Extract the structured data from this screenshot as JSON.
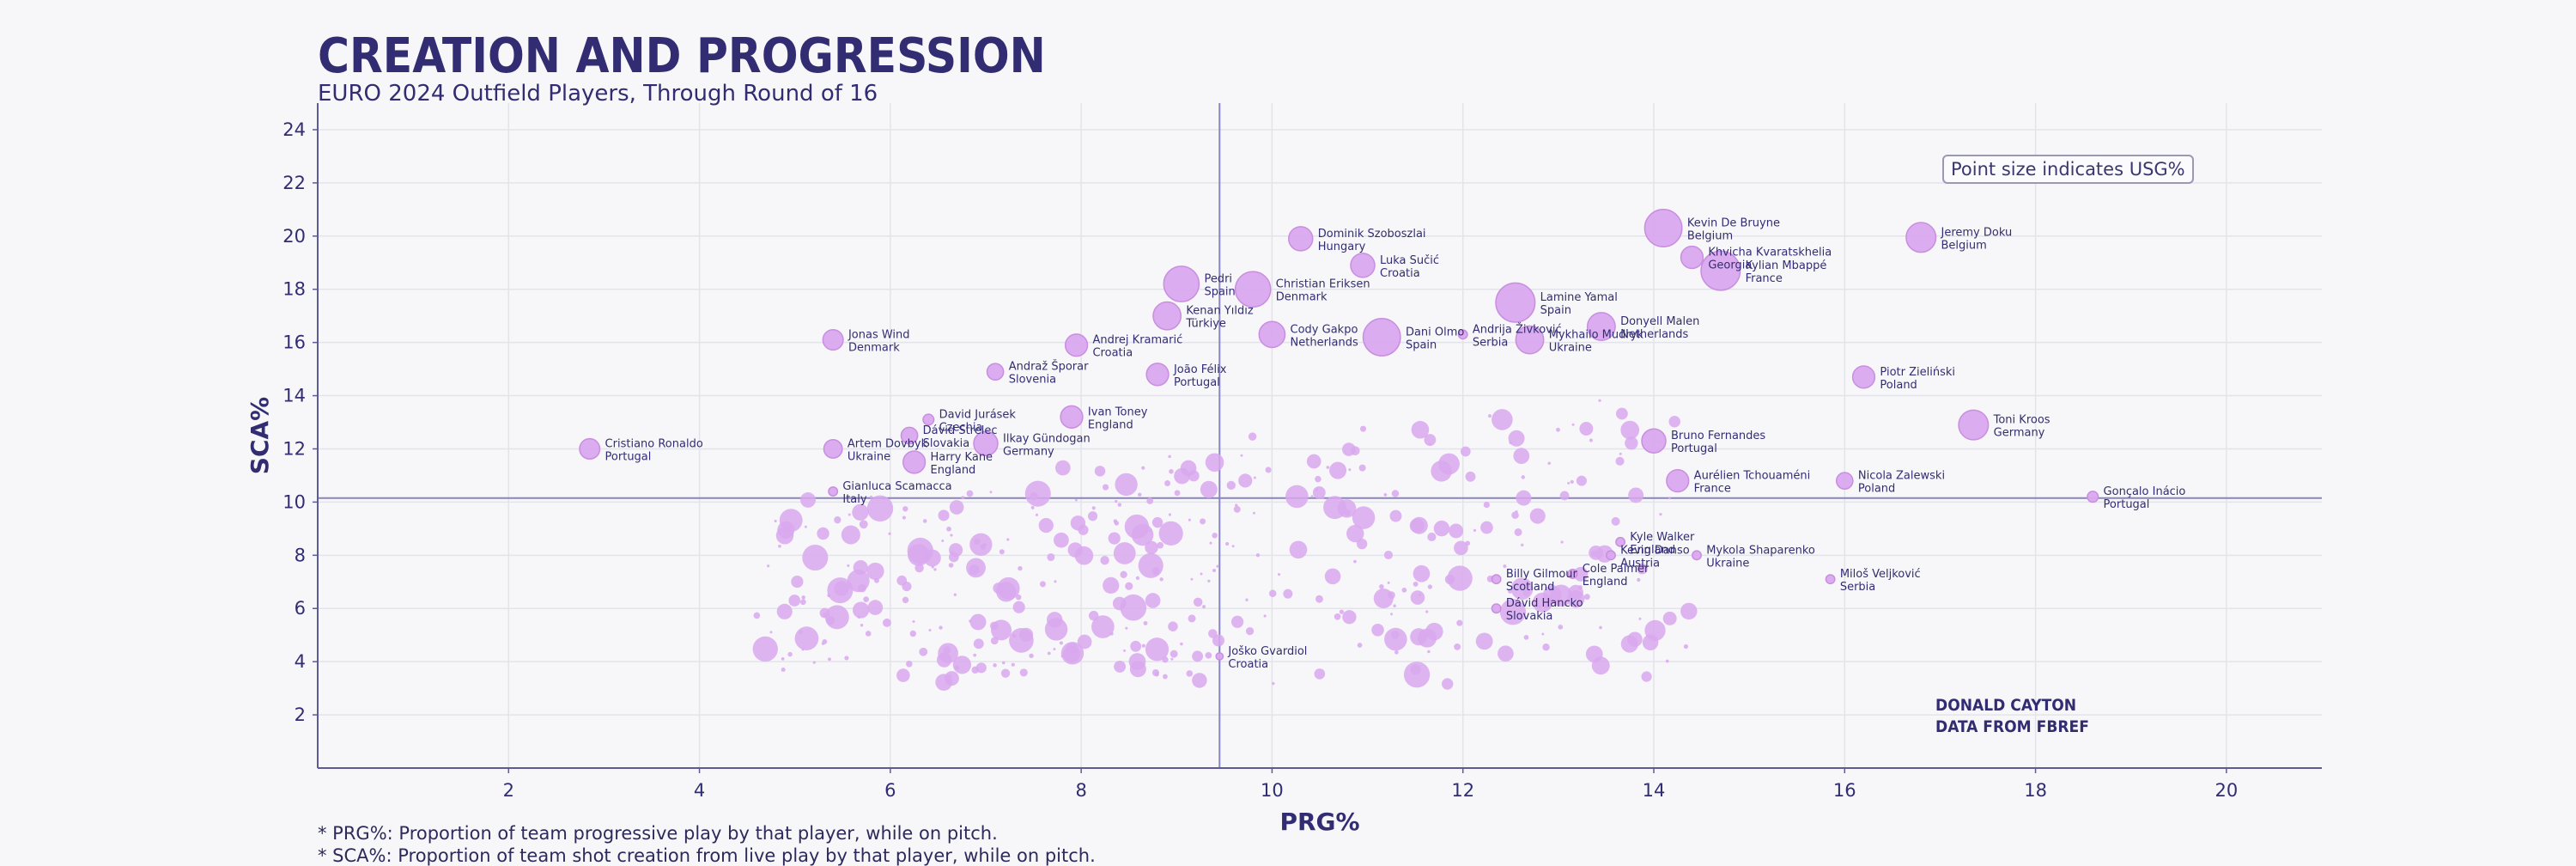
{
  "header": {
    "title": "CREATION AND PROGRESSION",
    "subtitle": "EURO 2024 Outfield Players, Through Round of 16"
  },
  "size_note": "Point size indicates USG%",
  "credit": [
    "DONALD CAYTON",
    "DATA FROM FBREF"
  ],
  "footnotes": [
    "* PRG%: Proportion of team progressive play by that player, while on pitch.",
    "* SCA%: Proportion of team shot creation from live play by that player, while on pitch."
  ],
  "colors": {
    "point": "#d9a8ee",
    "point_edge": "#c98ee0",
    "axis": "#5e5a94",
    "reference_line": "#8985bd",
    "grid": "#e3e3ea",
    "text": "#322d72"
  },
  "chart_data": {
    "type": "scatter",
    "xlabel": "PRG%",
    "ylabel": "SCA%",
    "xlim": [
      0,
      21
    ],
    "ylim": [
      0,
      25
    ],
    "xticks": [
      2,
      4,
      6,
      8,
      10,
      12,
      14,
      16,
      18,
      20
    ],
    "yticks": [
      2,
      4,
      6,
      8,
      10,
      12,
      14,
      16,
      18,
      20,
      22,
      24
    ],
    "grid": true,
    "reference_lines": {
      "x": 9.45,
      "y": 10.15
    },
    "size_encoding": "USG%",
    "labeled_points": [
      {
        "name": "Cristiano Ronaldo",
        "team": "Portugal",
        "x": 2.85,
        "y": 12.0,
        "size": 0.4
      },
      {
        "name": "Jonas Wind",
        "team": "Denmark",
        "x": 5.4,
        "y": 16.1,
        "size": 0.4
      },
      {
        "name": "Artem Dovbyk",
        "team": "Ukraine",
        "x": 5.4,
        "y": 12.0,
        "size": 0.35
      },
      {
        "name": "Gianluca Scamacca",
        "team": "Italy",
        "x": 5.4,
        "y": 10.4,
        "size": 0.1
      },
      {
        "name": "David Jurásek",
        "team": "Czechia",
        "x": 6.4,
        "y": 13.1,
        "size": 0.15
      },
      {
        "name": "Dávid Strelec",
        "team": "Slovakia",
        "x": 6.2,
        "y": 12.5,
        "size": 0.3
      },
      {
        "name": "Harry Kane",
        "team": "England",
        "x": 6.25,
        "y": 11.5,
        "size": 0.45
      },
      {
        "name": "Ilkay Gündogan",
        "team": "Germany",
        "x": 7.0,
        "y": 12.2,
        "size": 0.5
      },
      {
        "name": "Andraž Šporar",
        "team": "Slovenia",
        "x": 7.1,
        "y": 14.9,
        "size": 0.3
      },
      {
        "name": "Andrej Kramarić",
        "team": "Croatia",
        "x": 7.95,
        "y": 15.9,
        "size": 0.45
      },
      {
        "name": "Ivan Toney",
        "team": "England",
        "x": 7.9,
        "y": 13.2,
        "size": 0.45
      },
      {
        "name": "Pedri",
        "team": "Spain",
        "x": 9.05,
        "y": 18.2,
        "size": 0.8
      },
      {
        "name": "Kenan Yıldız",
        "team": "Türkiye",
        "x": 8.9,
        "y": 17.0,
        "size": 0.6
      },
      {
        "name": "João Félix",
        "team": "Portugal",
        "x": 8.8,
        "y": 14.8,
        "size": 0.45
      },
      {
        "name": "Christian Eriksen",
        "team": "Denmark",
        "x": 9.8,
        "y": 18.0,
        "size": 0.8
      },
      {
        "name": "Cody Gakpo",
        "team": "Netherlands",
        "x": 10.0,
        "y": 16.3,
        "size": 0.55
      },
      {
        "name": "Dominik Szoboszlai",
        "team": "Hungary",
        "x": 10.3,
        "y": 19.9,
        "size": 0.5
      },
      {
        "name": "Luka Sučić",
        "team": "Croatia",
        "x": 10.95,
        "y": 18.9,
        "size": 0.5
      },
      {
        "name": "Dani Olmo",
        "team": "Spain",
        "x": 11.15,
        "y": 16.2,
        "size": 0.85
      },
      {
        "name": "Andrija Živković",
        "team": "Serbia",
        "x": 12.0,
        "y": 16.3,
        "size": 0.1
      },
      {
        "name": "Lamine Yamal",
        "team": "Spain",
        "x": 12.55,
        "y": 17.5,
        "size": 0.9
      },
      {
        "name": "Mykhailo Mudryk",
        "team": "Ukraine",
        "x": 12.7,
        "y": 16.1,
        "size": 0.6
      },
      {
        "name": "Donyell Malen",
        "team": "Netherlands",
        "x": 13.45,
        "y": 16.6,
        "size": 0.6
      },
      {
        "name": "Kevin De Bruyne",
        "team": "Belgium",
        "x": 14.1,
        "y": 20.3,
        "size": 0.85
      },
      {
        "name": "Khvicha Kvaratskhelia",
        "team": "Georgia",
        "x": 14.4,
        "y": 19.2,
        "size": 0.45
      },
      {
        "name": "Kylian Mbappé",
        "team": "France",
        "x": 14.7,
        "y": 18.7,
        "size": 0.9
      },
      {
        "name": "Jeremy Doku",
        "team": "Belgium",
        "x": 16.8,
        "y": 19.95,
        "size": 0.65
      },
      {
        "name": "Piotr Zieliński",
        "team": "Poland",
        "x": 16.2,
        "y": 14.7,
        "size": 0.45
      },
      {
        "name": "Toni Kroos",
        "team": "Germany",
        "x": 17.35,
        "y": 12.9,
        "size": 0.65
      },
      {
        "name": "Bruno Fernandes",
        "team": "Portugal",
        "x": 14.0,
        "y": 12.3,
        "size": 0.5
      },
      {
        "name": "Aurélien Tchouaméni",
        "team": "France",
        "x": 14.25,
        "y": 10.8,
        "size": 0.45
      },
      {
        "name": "Nicola Zalewski",
        "team": "Poland",
        "x": 16.0,
        "y": 10.8,
        "size": 0.3
      },
      {
        "name": "Gonçalo Inácio",
        "team": "Portugal",
        "x": 18.6,
        "y": 10.2,
        "size": 0.15
      },
      {
        "name": "Kyle Walker",
        "team": "England",
        "x": 13.65,
        "y": 8.5,
        "size": 0.1
      },
      {
        "name": "Kevin Danso",
        "team": "Austria",
        "x": 13.55,
        "y": 8.0,
        "size": 0.1
      },
      {
        "name": "Mykola Shaparenko",
        "team": "Ukraine",
        "x": 14.45,
        "y": 8.0,
        "size": 0.1
      },
      {
        "name": "Cole Palmer",
        "team": "England",
        "x": 13.15,
        "y": 7.3,
        "size": 0.1
      },
      {
        "name": "Billy Gilmour",
        "team": "Scotland",
        "x": 12.35,
        "y": 7.1,
        "size": 0.1
      },
      {
        "name": "Miloš Veljković",
        "team": "Serbia",
        "x": 15.85,
        "y": 7.1,
        "size": 0.1
      },
      {
        "name": "Dávid Hancko",
        "team": "Slovakia",
        "x": 12.35,
        "y": 6.0,
        "size": 0.1
      },
      {
        "name": "Joško Gvardiol",
        "team": "Croatia",
        "x": 9.45,
        "y": 4.2,
        "size": 0.05
      }
    ]
  }
}
